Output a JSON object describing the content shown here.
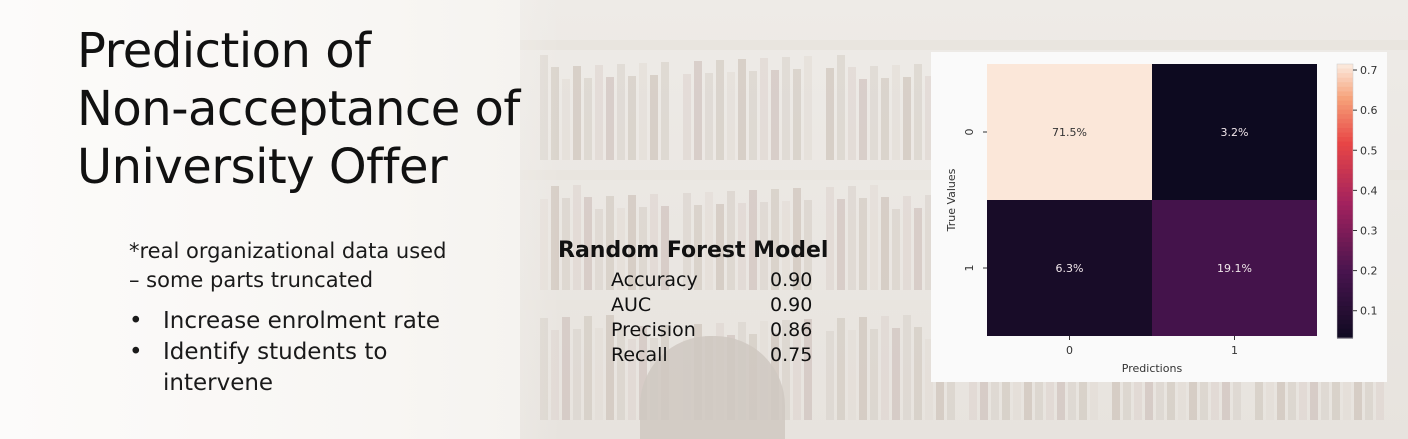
{
  "slide": {
    "title_lines": [
      "Prediction of",
      "Non-acceptance of",
      "University Offer"
    ],
    "note_lines": [
      "*real organizational data used",
      "– some parts truncated"
    ],
    "bullets": [
      "Increase enrolment rate",
      "Identify students to intervene"
    ]
  },
  "model": {
    "title": "Random Forest Model",
    "metrics": [
      {
        "label": "Accuracy",
        "value": "0.90"
      },
      {
        "label": "AUC",
        "value": "0.90"
      },
      {
        "label": "Precision",
        "value": "0.86"
      },
      {
        "label": "Recall",
        "value": "0.75"
      }
    ]
  },
  "chart_data": {
    "type": "heatmap",
    "title": "",
    "xlabel": "Predictions",
    "ylabel": "True Values",
    "x_categories": [
      "0",
      "1"
    ],
    "y_categories": [
      "0",
      "1"
    ],
    "values": [
      [
        0.715,
        0.032
      ],
      [
        0.063,
        0.191
      ]
    ],
    "cell_labels": [
      [
        "71.5%",
        "3.2%"
      ],
      [
        "6.3%",
        "19.1%"
      ]
    ],
    "colorbar": {
      "min": 0.032,
      "max": 0.715,
      "ticks": [
        0.1,
        0.2,
        0.3,
        0.4,
        0.5,
        0.6,
        0.7
      ]
    },
    "colors": {
      "low": "#0d0a20",
      "mid": "#a3225e",
      "high": "#fbe7d9"
    }
  }
}
